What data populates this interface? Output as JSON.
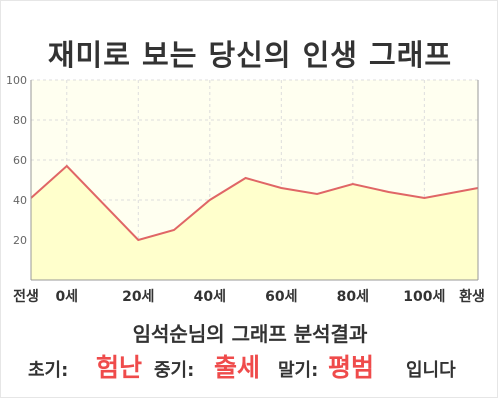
{
  "title": "재미로 보는 당신의 인생 그래프",
  "summary": "임석순님의 그래프 분석결과",
  "result": {
    "early_label": "초기:",
    "early_value": "험난",
    "mid_label": "중기:",
    "mid_value": "출세",
    "late_label": "말기:",
    "late_value": "평범",
    "ending": "입니다"
  },
  "colors": {
    "line": "#e06666",
    "fill": "#ffffcc",
    "plot_bg": "#fffff0",
    "grid": "#dddddd",
    "accent_text": "#ef4b4b"
  },
  "chart_data": {
    "type": "area",
    "title": "",
    "xlabel": "",
    "ylabel": "",
    "ylim": [
      0,
      100
    ],
    "yticks": [
      20,
      40,
      60,
      80,
      100
    ],
    "xlim": [
      -10,
      115
    ],
    "xticks": [
      {
        "x": -10,
        "label": "전생"
      },
      {
        "x": 0,
        "label": "0세"
      },
      {
        "x": 20,
        "label": "20세"
      },
      {
        "x": 40,
        "label": "40세"
      },
      {
        "x": 60,
        "label": "60세"
      },
      {
        "x": 80,
        "label": "80세"
      },
      {
        "x": 100,
        "label": "100세"
      },
      {
        "x": 115,
        "label": "환생"
      }
    ],
    "grid": true,
    "series": [
      {
        "x": [
          -10,
          0,
          20,
          30,
          40,
          50,
          60,
          70,
          80,
          90,
          100,
          115
        ],
        "values": [
          41,
          57,
          20,
          25,
          40,
          51,
          46,
          43,
          48,
          44,
          41,
          46
        ]
      }
    ]
  }
}
